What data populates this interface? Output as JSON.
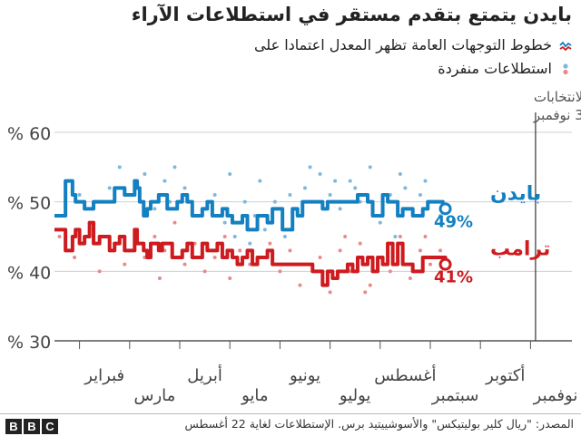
{
  "title": "بايدن يتمتع بتقدم مستقر في استطلاعات الآراء",
  "legend": [
    {
      "label": "خطوط التوجهات العامة تظهر المعدل اعتمادا على",
      "icon": "trend-lines-icon"
    },
    {
      "label": "استطلاعات منفردة",
      "icon": "individual-polls-icon"
    }
  ],
  "colors": {
    "biden": "#1380c1",
    "trump": "#ce1b1f",
    "biden_dot": "#7fb7dc",
    "trump_dot": "#e8898b"
  },
  "footer": {
    "logo": [
      "B",
      "B",
      "C"
    ],
    "source": "المصدر: \"ريال كلير بوليتيكس\" والأسوشييتيد برس. الإستطلاعات لغاية 22 أغسطس"
  },
  "chart_data": {
    "type": "line",
    "ylim": [
      30,
      60
    ],
    "yticks": [
      {
        "value": 30,
        "label": "% 30"
      },
      {
        "value": 40,
        "label": "% 40"
      },
      {
        "value": 50,
        "label": "% 50"
      },
      {
        "value": 60,
        "label": "% 60"
      }
    ],
    "xlim": [
      0,
      10
    ],
    "months": [
      {
        "label": "فبراير",
        "pos": 1,
        "row": 0
      },
      {
        "label": "مارس",
        "pos": 2,
        "row": 1
      },
      {
        "label": "أبريل",
        "pos": 3,
        "row": 0
      },
      {
        "label": "مايو",
        "pos": 4,
        "row": 1
      },
      {
        "label": "يونيو",
        "pos": 5,
        "row": 0
      },
      {
        "label": "يوليو",
        "pos": 6,
        "row": 1
      },
      {
        "label": "أغسطس",
        "pos": 7,
        "row": 0
      },
      {
        "label": "سبتمبر",
        "pos": 8,
        "row": 1
      },
      {
        "label": "أكتوبر",
        "pos": 9,
        "row": 0
      },
      {
        "label": "نوفمبر",
        "pos": 10,
        "row": 1
      }
    ],
    "election": {
      "pos": 9.6,
      "label1": "يوم الانتخابات",
      "label2": "3 نوفمبر"
    },
    "series": [
      {
        "name": "بايدن",
        "value_label": "49%",
        "color": "#1380c1",
        "x": [
          0,
          0.18,
          0.22,
          0.3,
          0.36,
          0.42,
          0.5,
          0.6,
          0.7,
          0.78,
          0.84,
          0.9,
          1.0,
          1.1,
          1.2,
          1.3,
          1.4,
          1.5,
          1.6,
          1.65,
          1.7,
          1.78,
          1.85,
          1.92,
          2.0,
          2.08,
          2.15,
          2.25,
          2.35,
          2.45,
          2.55,
          2.65,
          2.75,
          2.85,
          2.95,
          3.05,
          3.15,
          3.25,
          3.35,
          3.45,
          3.55,
          3.65,
          3.75,
          3.85,
          3.95,
          4.05,
          4.15,
          4.25,
          4.35,
          4.45,
          4.55,
          4.65,
          4.75,
          4.85,
          4.95,
          5.05,
          5.15,
          5.25,
          5.35,
          5.45,
          5.55,
          5.65,
          5.75,
          5.85,
          5.95,
          6.05,
          6.15,
          6.25,
          6.35,
          6.45,
          6.55,
          6.65,
          6.75,
          6.85,
          6.95,
          7.05,
          7.15,
          7.25,
          7.35,
          7.45,
          7.55,
          7.65,
          7.75,
          7.8
        ],
        "values": [
          48,
          48,
          53,
          53,
          51,
          50,
          50,
          49,
          49,
          50,
          50,
          50,
          50,
          50,
          52,
          52,
          51,
          51,
          53,
          52,
          50,
          48,
          49,
          50,
          50,
          51,
          51,
          49,
          49,
          50,
          51,
          50,
          48,
          48,
          49,
          50,
          48,
          48,
          49,
          48,
          47,
          47,
          48,
          46,
          46,
          48,
          48,
          47,
          49,
          49,
          46,
          46,
          49,
          48,
          50,
          50,
          50,
          50,
          49,
          50,
          50,
          50,
          50,
          50,
          50,
          51,
          51,
          50,
          48,
          48,
          51,
          50,
          50,
          48,
          49,
          49,
          48,
          48,
          49,
          50,
          50,
          50,
          49,
          49
        ]
      },
      {
        "name": "ترامب",
        "value_label": "41%",
        "color": "#ce1b1f",
        "x": [
          0,
          0.18,
          0.22,
          0.3,
          0.36,
          0.42,
          0.5,
          0.6,
          0.7,
          0.78,
          0.84,
          0.9,
          1.0,
          1.1,
          1.2,
          1.3,
          1.4,
          1.5,
          1.6,
          1.65,
          1.7,
          1.78,
          1.85,
          1.92,
          2.0,
          2.08,
          2.15,
          2.25,
          2.35,
          2.45,
          2.55,
          2.65,
          2.75,
          2.85,
          2.95,
          3.05,
          3.15,
          3.25,
          3.35,
          3.45,
          3.55,
          3.65,
          3.75,
          3.85,
          3.95,
          4.05,
          4.15,
          4.25,
          4.35,
          4.45,
          4.55,
          4.65,
          4.75,
          4.85,
          4.95,
          5.05,
          5.15,
          5.25,
          5.35,
          5.45,
          5.55,
          5.65,
          5.75,
          5.85,
          5.95,
          6.05,
          6.15,
          6.25,
          6.35,
          6.45,
          6.55,
          6.65,
          6.75,
          6.85,
          6.95,
          7.05,
          7.15,
          7.25,
          7.35,
          7.45,
          7.55,
          7.65,
          7.75,
          7.8
        ],
        "values": [
          46,
          46,
          43,
          43,
          45,
          46,
          44,
          45,
          47,
          44,
          44,
          45,
          45,
          43,
          44,
          45,
          43,
          43,
          46,
          44,
          44,
          43,
          42,
          44,
          44,
          43,
          44,
          44,
          42,
          42,
          43,
          44,
          42,
          42,
          44,
          43,
          43,
          44,
          42,
          43,
          42,
          41,
          42,
          43,
          41,
          42,
          42,
          43,
          41,
          41,
          41,
          41,
          41,
          41,
          41,
          41,
          40,
          40,
          38,
          40,
          39,
          40,
          40,
          41,
          40,
          42,
          41,
          42,
          40,
          42,
          41,
          44,
          41,
          44,
          41,
          41,
          40,
          40,
          42,
          42,
          42,
          42,
          42,
          41
        ]
      }
    ],
    "polls_biden": [
      [
        0.1,
        48
      ],
      [
        0.5,
        51
      ],
      [
        0.9,
        50
      ],
      [
        1.1,
        52
      ],
      [
        1.4,
        51
      ],
      [
        1.6,
        53
      ],
      [
        1.8,
        54
      ],
      [
        2.0,
        49
      ],
      [
        2.2,
        53
      ],
      [
        2.3,
        50
      ],
      [
        2.6,
        52
      ],
      [
        2.8,
        48
      ],
      [
        3.0,
        49
      ],
      [
        3.2,
        51
      ],
      [
        3.4,
        47
      ],
      [
        3.6,
        45
      ],
      [
        3.8,
        50
      ],
      [
        4.0,
        48
      ],
      [
        4.2,
        46
      ],
      [
        4.4,
        50
      ],
      [
        4.6,
        45
      ],
      [
        4.8,
        49
      ],
      [
        5.0,
        52
      ],
      [
        5.1,
        55
      ],
      [
        5.3,
        54
      ],
      [
        5.5,
        51
      ],
      [
        5.7,
        49
      ],
      [
        5.9,
        53
      ],
      [
        6.1,
        50
      ],
      [
        6.3,
        55
      ],
      [
        6.5,
        47
      ],
      [
        6.7,
        51
      ],
      [
        6.8,
        45
      ],
      [
        7.0,
        52
      ],
      [
        7.2,
        48
      ],
      [
        7.4,
        53
      ],
      [
        7.6,
        50
      ],
      [
        7.7,
        48
      ],
      [
        1.3,
        55
      ],
      [
        2.4,
        55
      ],
      [
        3.5,
        54
      ],
      [
        4.1,
        53
      ],
      [
        5.6,
        53
      ],
      [
        6.0,
        52
      ],
      [
        6.9,
        54
      ],
      [
        4.7,
        51
      ],
      [
        3.9,
        44
      ],
      [
        7.3,
        51
      ]
    ],
    "polls_trump": [
      [
        0.1,
        45
      ],
      [
        0.4,
        42
      ],
      [
        0.7,
        47
      ],
      [
        0.9,
        40
      ],
      [
        1.2,
        44
      ],
      [
        1.4,
        41
      ],
      [
        1.6,
        46
      ],
      [
        1.8,
        42
      ],
      [
        2.0,
        45
      ],
      [
        2.2,
        43
      ],
      [
        2.4,
        47
      ],
      [
        2.6,
        41
      ],
      [
        2.8,
        44
      ],
      [
        3.0,
        40
      ],
      [
        3.2,
        42
      ],
      [
        3.4,
        45
      ],
      [
        3.5,
        39
      ],
      [
        3.7,
        43
      ],
      [
        3.9,
        41
      ],
      [
        4.1,
        42
      ],
      [
        4.3,
        44
      ],
      [
        4.5,
        40
      ],
      [
        4.7,
        43
      ],
      [
        4.9,
        38
      ],
      [
        5.1,
        41
      ],
      [
        5.3,
        42
      ],
      [
        5.5,
        37
      ],
      [
        5.7,
        43
      ],
      [
        5.9,
        40
      ],
      [
        6.1,
        44
      ],
      [
        6.3,
        38
      ],
      [
        6.5,
        42
      ],
      [
        6.7,
        40
      ],
      [
        6.9,
        45
      ],
      [
        7.1,
        39
      ],
      [
        7.3,
        43
      ],
      [
        7.5,
        41
      ],
      [
        7.7,
        43
      ],
      [
        2.1,
        39
      ],
      [
        5.8,
        45
      ],
      [
        6.2,
        37
      ],
      [
        7.4,
        45
      ]
    ]
  }
}
